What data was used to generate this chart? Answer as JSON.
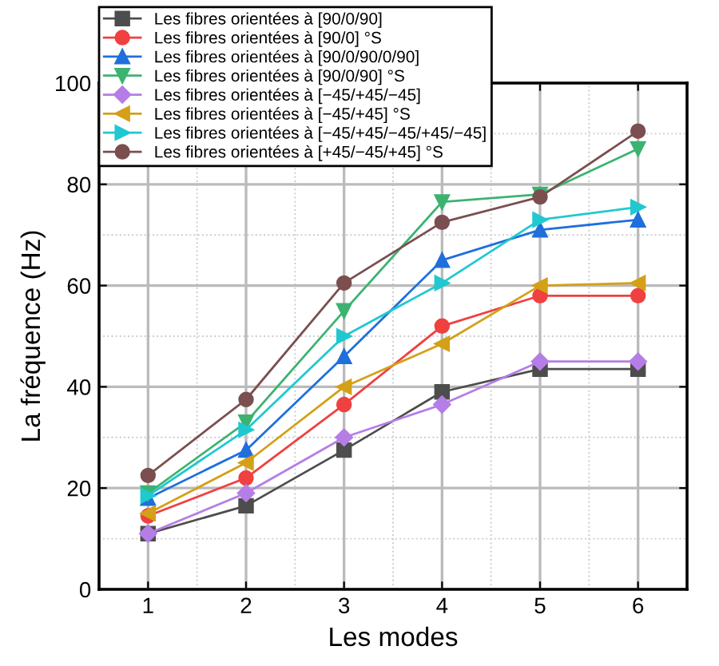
{
  "chart_data": {
    "type": "line",
    "xlabel": "Les modes",
    "ylabel": "La fréquence (Hz)",
    "xlim": [
      0.5,
      6.5
    ],
    "xticks": [
      1,
      2,
      3,
      4,
      5,
      6
    ],
    "ylim": [
      0,
      100
    ],
    "yticks": [
      0,
      20,
      40,
      60,
      80,
      100
    ],
    "grid": true,
    "legend": "top left",
    "x": [
      1,
      2,
      3,
      4,
      5,
      6
    ],
    "series": [
      {
        "name": "Les fibres orientées à [90/0/90]",
        "color": "#4d4d4d",
        "marker": "square",
        "values": [
          11,
          16.5,
          27.5,
          39,
          43.5,
          43.5
        ]
      },
      {
        "name": "Les fibres orientées à [90/0] °S",
        "color": "#f04040",
        "marker": "circle",
        "values": [
          14.5,
          22,
          36.5,
          52,
          58,
          58
        ]
      },
      {
        "name": "Les fibres orientées à [90/0/90/0/90]",
        "color": "#1f6fdc",
        "marker": "triangle",
        "values": [
          18,
          27.5,
          46,
          65,
          71,
          73
        ]
      },
      {
        "name": "Les fibres orientées à [90/0/90] °S",
        "color": "#3cb371",
        "marker": "triangle_down",
        "values": [
          19,
          33,
          55,
          76.5,
          78,
          87
        ]
      },
      {
        "name": "Les fibres orientées à [−45/+45/−45]",
        "color": "#b57ee6",
        "marker": "diamond",
        "values": [
          11,
          19,
          30,
          36.5,
          45,
          45
        ]
      },
      {
        "name": "Les fibres orientées à [−45/+45] °S",
        "color": "#d4a017",
        "marker": "triangle_left",
        "values": [
          15,
          25,
          40,
          48.5,
          60,
          60.5
        ]
      },
      {
        "name": "Les fibres orientées à [−45/+45/−45/+45/−45]",
        "color": "#20c8d0",
        "marker": "triangle_right",
        "values": [
          18.5,
          31.5,
          50,
          60.5,
          73,
          75.5
        ]
      },
      {
        "name": "Les fibres orientées à [+45/−45/+45] °S",
        "color": "#7b4f4f",
        "marker": "circle",
        "values": [
          22.5,
          37.5,
          60.5,
          72.5,
          77.5,
          90.5
        ]
      }
    ]
  }
}
